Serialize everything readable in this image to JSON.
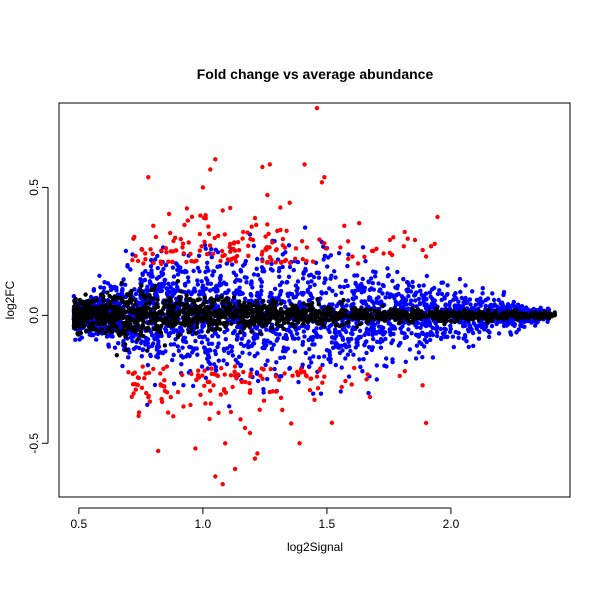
{
  "chart_data": {
    "type": "scatter",
    "title": "Fold change vs average abundance",
    "xlabel": "log2Signal",
    "ylabel": "log2FC",
    "xlim": [
      0.42,
      2.48
    ],
    "ylim": [
      -0.71,
      0.83
    ],
    "xticks": [
      0.5,
      1.0,
      1.5,
      2.0
    ],
    "xtick_labels": [
      "0.5",
      "1.0",
      "1.5",
      "2.0"
    ],
    "yticks": [
      -0.5,
      0.0,
      0.5
    ],
    "ytick_labels": [
      "-0.5",
      "0.0",
      "0.5"
    ],
    "grid": false,
    "legend": "none",
    "colors": {
      "black": "#000000",
      "blue": "#0000ff",
      "red": "#ff0000"
    },
    "series": [
      {
        "color": "black",
        "x_range": [
          0.48,
          2.42
        ],
        "y_spread_at_x": [
          [
            0.5,
            0.06
          ],
          [
            0.7,
            0.1
          ],
          [
            1.0,
            0.06
          ],
          [
            1.5,
            0.03
          ],
          [
            2.0,
            0.02
          ],
          [
            2.4,
            0.01
          ]
        ]
      },
      {
        "color": "blue",
        "x_range": [
          0.48,
          2.4
        ],
        "y_spread_at_x": [
          [
            0.5,
            0.05
          ],
          [
            0.8,
            0.2
          ],
          [
            1.2,
            0.22
          ],
          [
            1.6,
            0.18
          ],
          [
            2.0,
            0.1
          ],
          [
            2.4,
            0.02
          ]
        ]
      },
      {
        "color": "red",
        "x_range": [
          0.7,
          2.0
        ],
        "points": [
          [
            1.46,
            0.81
          ],
          [
            1.05,
            0.61
          ],
          [
            1.03,
            0.57
          ],
          [
            1.27,
            0.59
          ],
          [
            1.24,
            0.58
          ],
          [
            1.41,
            0.59
          ],
          [
            1.0,
            0.5
          ],
          [
            1.48,
            0.52
          ],
          [
            1.49,
            0.54
          ],
          [
            0.78,
            0.54
          ],
          [
            1.26,
            0.47
          ],
          [
            1.35,
            0.44
          ],
          [
            1.08,
            0.41
          ],
          [
            0.99,
            0.39
          ],
          [
            1.11,
            0.42
          ],
          [
            1.63,
            0.36
          ],
          [
            1.57,
            0.35
          ],
          [
            1.21,
            0.38
          ],
          [
            1.92,
            0.27
          ],
          [
            0.88,
            0.25
          ],
          [
            0.95,
            0.24
          ],
          [
            1.4,
            0.29
          ],
          [
            1.7,
            0.26
          ],
          [
            1.81,
            0.27
          ],
          [
            0.83,
            0.21
          ],
          [
            1.9,
            0.23
          ],
          [
            0.8,
            0.35
          ],
          [
            1.3,
            0.33
          ],
          [
            1.16,
            0.3
          ],
          [
            0.92,
            0.28
          ],
          [
            1.05,
            -0.63
          ],
          [
            1.08,
            -0.66
          ],
          [
            1.13,
            -0.6
          ],
          [
            1.21,
            -0.56
          ],
          [
            1.22,
            -0.54
          ],
          [
            1.09,
            -0.5
          ],
          [
            1.17,
            -0.44
          ],
          [
            1.19,
            -0.46
          ],
          [
            0.82,
            -0.53
          ],
          [
            0.97,
            -0.52
          ],
          [
            1.39,
            -0.5
          ],
          [
            1.52,
            -0.42
          ],
          [
            0.86,
            -0.38
          ],
          [
            0.95,
            -0.35
          ],
          [
            1.32,
            -0.37
          ],
          [
            1.45,
            -0.33
          ],
          [
            1.6,
            -0.27
          ],
          [
            1.66,
            -0.25
          ],
          [
            1.02,
            -0.26
          ],
          [
            0.78,
            -0.32
          ],
          [
            0.9,
            -0.3
          ],
          [
            1.27,
            -0.3
          ],
          [
            1.56,
            -0.28
          ],
          [
            0.83,
            -0.27
          ],
          [
            1.12,
            -0.28
          ]
        ]
      }
    ]
  }
}
